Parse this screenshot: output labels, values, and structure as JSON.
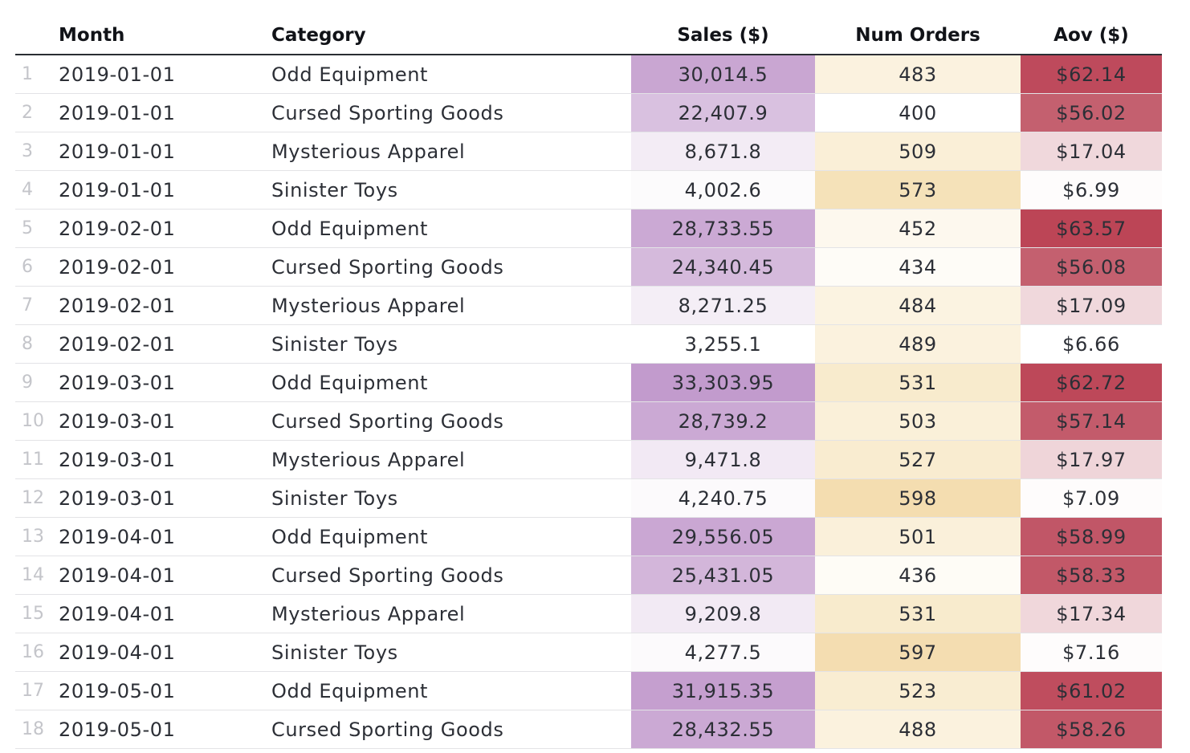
{
  "table": {
    "columns": {
      "index": "",
      "month": "Month",
      "category": "Category",
      "sales": "Sales ($)",
      "orders": "Num Orders",
      "aov": "Aov ($)"
    },
    "rows": [
      {
        "index": "1",
        "month": "2019-01-01",
        "category": "Odd Equipment",
        "sales": "30,014.5",
        "orders": "483",
        "aov": "$62.14",
        "sales_color": "#c9a6d2",
        "orders_color": "#fbf2df",
        "aov_color": "#be4a5c"
      },
      {
        "index": "2",
        "month": "2019-01-01",
        "category": "Cursed Sporting Goods",
        "sales": "22,407.9",
        "orders": "400",
        "aov": "$56.02",
        "sales_color": "#d9c1e0",
        "orders_color": "#ffffff",
        "aov_color": "#c4606f"
      },
      {
        "index": "3",
        "month": "2019-01-01",
        "category": "Mysterious Apparel",
        "sales": "8,671.8",
        "orders": "509",
        "aov": "$17.04",
        "sales_color": "#f3ecf5",
        "orders_color": "#faefd7",
        "aov_color": "#f0d8dc"
      },
      {
        "index": "4",
        "month": "2019-01-01",
        "category": "Sinister Toys",
        "sales": "4,002.6",
        "orders": "573",
        "aov": "$6.99",
        "sales_color": "#fcfbfc",
        "orders_color": "#f5e2b9",
        "aov_color": "#fefcfc"
      },
      {
        "index": "5",
        "month": "2019-02-01",
        "category": "Odd Equipment",
        "sales": "28,733.55",
        "orders": "452",
        "aov": "$63.57",
        "sales_color": "#cba9d4",
        "orders_color": "#fdf8ee",
        "aov_color": "#bc4556"
      },
      {
        "index": "6",
        "month": "2019-02-01",
        "category": "Cursed Sporting Goods",
        "sales": "24,340.45",
        "orders": "434",
        "aov": "$56.08",
        "sales_color": "#d5badc",
        "orders_color": "#fefcf7",
        "aov_color": "#c4606f"
      },
      {
        "index": "7",
        "month": "2019-02-01",
        "category": "Mysterious Apparel",
        "sales": "8,271.25",
        "orders": "484",
        "aov": "$17.09",
        "sales_color": "#f4eef6",
        "orders_color": "#fbf3e1",
        "aov_color": "#f0d8dc"
      },
      {
        "index": "8",
        "month": "2019-02-01",
        "category": "Sinister Toys",
        "sales": "3,255.1",
        "orders": "489",
        "aov": "$6.66",
        "sales_color": "#ffffff",
        "orders_color": "#fbf2de",
        "aov_color": "#ffffff"
      },
      {
        "index": "9",
        "month": "2019-03-01",
        "category": "Odd Equipment",
        "sales": "33,303.95",
        "orders": "531",
        "aov": "$62.72",
        "sales_color": "#c29bcd",
        "orders_color": "#f8ebcd",
        "aov_color": "#bd4859"
      },
      {
        "index": "10",
        "month": "2019-03-01",
        "category": "Cursed Sporting Goods",
        "sales": "28,739.2",
        "orders": "503",
        "aov": "$57.14",
        "sales_color": "#cba9d4",
        "orders_color": "#faf0d9",
        "aov_color": "#c35b6b"
      },
      {
        "index": "11",
        "month": "2019-03-01",
        "category": "Mysterious Apparel",
        "sales": "9,471.8",
        "orders": "527",
        "aov": "$17.97",
        "sales_color": "#f2e9f4",
        "orders_color": "#f9ecd0",
        "aov_color": "#efd5d9"
      },
      {
        "index": "12",
        "month": "2019-03-01",
        "category": "Sinister Toys",
        "sales": "4,240.75",
        "orders": "598",
        "aov": "$7.09",
        "sales_color": "#fcfafc",
        "orders_color": "#f4ddb0",
        "aov_color": "#fefcfc"
      },
      {
        "index": "13",
        "month": "2019-04-01",
        "category": "Odd Equipment",
        "sales": "29,556.05",
        "orders": "501",
        "aov": "$58.99",
        "sales_color": "#caa7d3",
        "orders_color": "#faf0da",
        "aov_color": "#c15667"
      },
      {
        "index": "14",
        "month": "2019-04-01",
        "category": "Cursed Sporting Goods",
        "sales": "25,431.05",
        "orders": "436",
        "aov": "$58.33",
        "sales_color": "#d3b6da",
        "orders_color": "#fefcf6",
        "aov_color": "#c25868"
      },
      {
        "index": "15",
        "month": "2019-04-01",
        "category": "Mysterious Apparel",
        "sales": "9,209.8",
        "orders": "531",
        "aov": "$17.34",
        "sales_color": "#f2eaf4",
        "orders_color": "#f8ebcd",
        "aov_color": "#f0d7db"
      },
      {
        "index": "16",
        "month": "2019-04-01",
        "category": "Sinister Toys",
        "sales": "4,277.5",
        "orders": "597",
        "aov": "$7.16",
        "sales_color": "#fcfafc",
        "orders_color": "#f4ddb1",
        "aov_color": "#fefcfc"
      },
      {
        "index": "17",
        "month": "2019-05-01",
        "category": "Odd Equipment",
        "sales": "31,915.35",
        "orders": "523",
        "aov": "$61.02",
        "sales_color": "#c59fcf",
        "orders_color": "#f9edd2",
        "aov_color": "#bf4d5e"
      },
      {
        "index": "18",
        "month": "2019-05-01",
        "category": "Cursed Sporting Goods",
        "sales": "28,432.55",
        "orders": "488",
        "aov": "$58.26",
        "sales_color": "#cba9d4",
        "orders_color": "#fbf2de",
        "aov_color": "#c25868"
      }
    ]
  }
}
